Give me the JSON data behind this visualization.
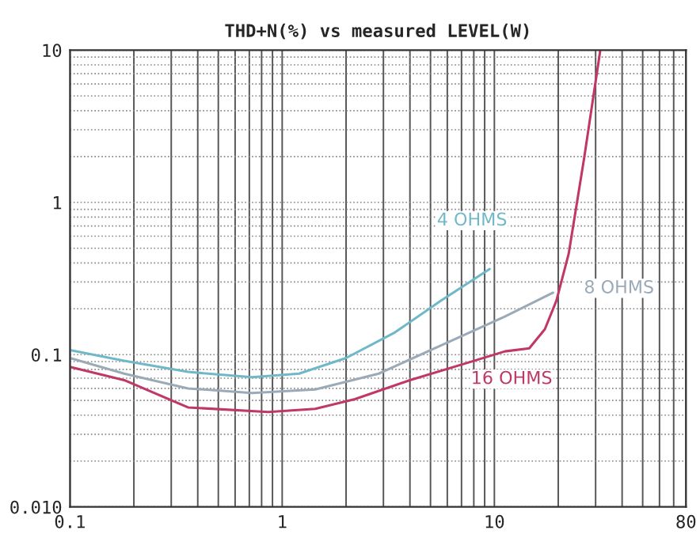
{
  "chart_data": {
    "type": "line",
    "title": "THD+N(%) vs measured LEVEL(W)",
    "log": "xy",
    "grid": true,
    "xlim": [
      0.1,
      80
    ],
    "xticks": [
      0.1,
      1,
      10,
      {
        "value": 80,
        "label": "80"
      }
    ],
    "ylim": [
      0.01,
      10
    ],
    "yticks": [
      {
        "value": 0.01,
        "label": "0.010"
      },
      0.1,
      1,
      10
    ],
    "series": [
      {
        "name": "4 OHMS",
        "color": "#6fb8c8",
        "x": [
          0.1,
          0.18,
          0.36,
          0.72,
          1.2,
          2.0,
          3.4,
          5.6,
          9.5
        ],
        "values": [
          0.107,
          0.091,
          0.077,
          0.071,
          0.075,
          0.095,
          0.14,
          0.226,
          0.365
        ]
      },
      {
        "name": "8 OHMS",
        "color": "#9aaab8",
        "x": [
          0.1,
          0.18,
          0.36,
          0.72,
          1.43,
          2.85,
          5.6,
          11.2,
          18.9
        ],
        "values": [
          0.095,
          0.075,
          0.06,
          0.056,
          0.059,
          0.075,
          0.115,
          0.178,
          0.255
        ]
      },
      {
        "name": "16 OHMS",
        "color": "#c03868",
        "x": [
          0.1,
          0.18,
          0.36,
          0.86,
          1.43,
          2.2,
          4.0,
          8.0,
          11.2,
          14.6,
          17.3,
          19.6,
          22.4,
          26.5,
          31.5
        ],
        "values": [
          0.083,
          0.068,
          0.045,
          0.042,
          0.044,
          0.051,
          0.068,
          0.091,
          0.105,
          0.11,
          0.147,
          0.226,
          0.46,
          1.96,
          9.8
        ]
      }
    ]
  }
}
